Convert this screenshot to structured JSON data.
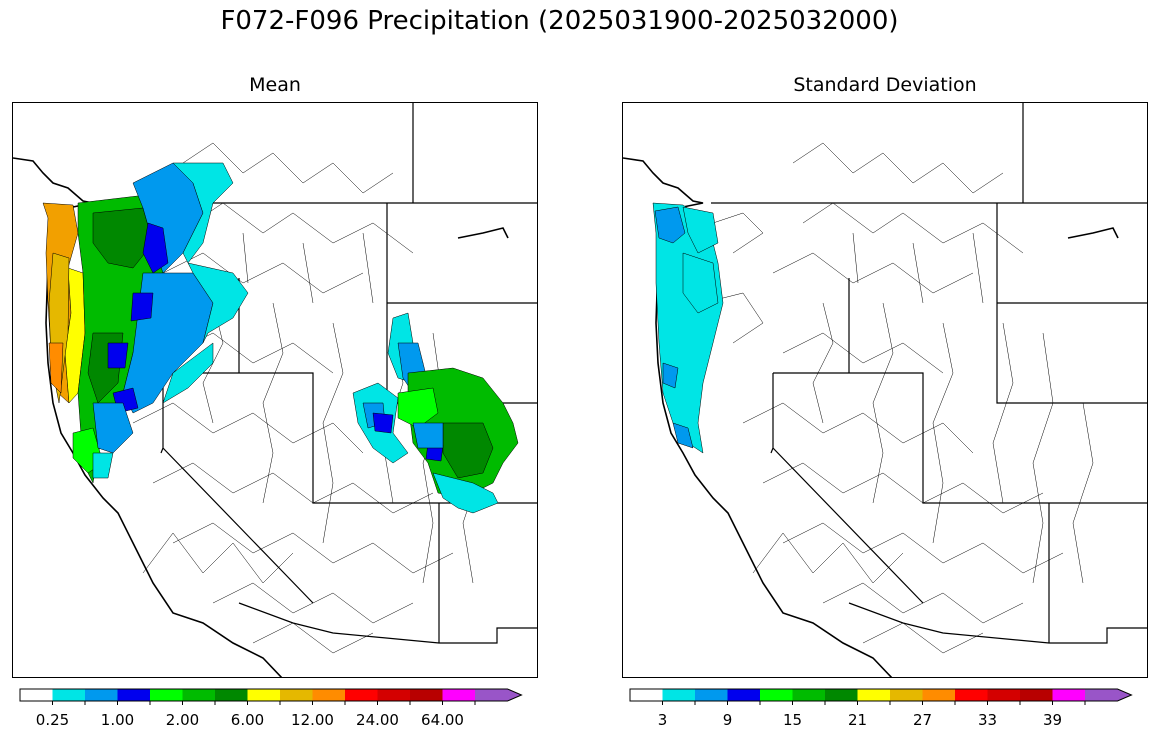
{
  "title": "F072-F096 Precipitation (2025031900-2025032000)",
  "panels": [
    {
      "title": "Mean"
    },
    {
      "title": "Standard Deviation"
    }
  ],
  "colors": {
    "bins": [
      "#ffffff",
      "#00e5e5",
      "#0099ee",
      "#0000ee",
      "#00ff00",
      "#00bb00",
      "#008800",
      "#ffff00",
      "#e5b800",
      "#ff8c00",
      "#ff0000",
      "#d40000",
      "#b80000",
      "#ff00ff",
      "#9955c8"
    ]
  },
  "colorbars": [
    {
      "labels": [
        "0.25",
        "1.00",
        "2.00",
        "6.00",
        "12.00",
        "24.00",
        "64.00"
      ]
    },
    {
      "labels": [
        "3",
        "9",
        "15",
        "21",
        "27",
        "33",
        "39"
      ]
    }
  ]
}
